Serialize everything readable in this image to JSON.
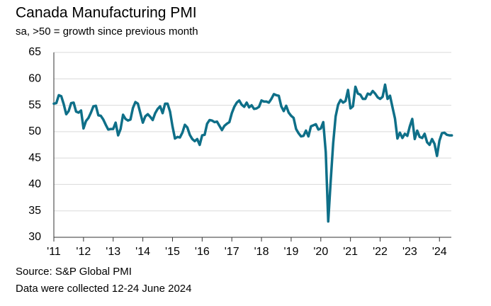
{
  "chart_data": {
    "type": "line",
    "title": "Canada Manufacturing PMI",
    "subtitle": "sa, >50 = growth since previous month",
    "notes": [
      "Source: S&P Global PMI",
      "Data were collected 12-24 June 2024"
    ],
    "x": [
      2011,
      2011.083,
      2011.167,
      2011.25,
      2011.333,
      2011.417,
      2011.5,
      2011.583,
      2011.667,
      2011.75,
      2011.833,
      2011.917,
      2012,
      2012.083,
      2012.167,
      2012.25,
      2012.333,
      2012.417,
      2012.5,
      2012.583,
      2012.667,
      2012.75,
      2012.833,
      2012.917,
      2013,
      2013.083,
      2013.167,
      2013.25,
      2013.333,
      2013.417,
      2013.5,
      2013.583,
      2013.667,
      2013.75,
      2013.833,
      2013.917,
      2014,
      2014.083,
      2014.167,
      2014.25,
      2014.333,
      2014.417,
      2014.5,
      2014.583,
      2014.667,
      2014.75,
      2014.833,
      2014.917,
      2015,
      2015.083,
      2015.167,
      2015.25,
      2015.333,
      2015.417,
      2015.5,
      2015.583,
      2015.667,
      2015.75,
      2015.833,
      2015.917,
      2016,
      2016.083,
      2016.167,
      2016.25,
      2016.333,
      2016.417,
      2016.5,
      2016.583,
      2016.667,
      2016.75,
      2016.833,
      2016.917,
      2017,
      2017.083,
      2017.167,
      2017.25,
      2017.333,
      2017.417,
      2017.5,
      2017.583,
      2017.667,
      2017.75,
      2017.833,
      2017.917,
      2018,
      2018.083,
      2018.167,
      2018.25,
      2018.333,
      2018.417,
      2018.5,
      2018.583,
      2018.667,
      2018.75,
      2018.833,
      2018.917,
      2019,
      2019.083,
      2019.167,
      2019.25,
      2019.333,
      2019.417,
      2019.5,
      2019.583,
      2019.667,
      2019.75,
      2019.833,
      2019.917,
      2020,
      2020.083,
      2020.167,
      2020.25,
      2020.333,
      2020.417,
      2020.5,
      2020.583,
      2020.667,
      2020.75,
      2020.833,
      2020.917,
      2021,
      2021.083,
      2021.167,
      2021.25,
      2021.333,
      2021.417,
      2021.5,
      2021.583,
      2021.667,
      2021.75,
      2021.833,
      2021.917,
      2022,
      2022.083,
      2022.167,
      2022.25,
      2022.333,
      2022.417,
      2022.5,
      2022.583,
      2022.667,
      2022.75,
      2022.833,
      2022.917,
      2023,
      2023.083,
      2023.167,
      2023.25,
      2023.333,
      2023.417,
      2023.5,
      2023.583,
      2023.667,
      2023.75,
      2023.833,
      2023.917,
      2024,
      2024.083,
      2024.167,
      2024.25,
      2024.333,
      2024.417
    ],
    "series": [
      {
        "name": "Canada Manufacturing PMI",
        "color": "#0e6f88",
        "values": [
          55.3,
          55.4,
          56.9,
          56.7,
          55.2,
          53.3,
          53.9,
          55.4,
          55.5,
          53.8,
          53.6,
          54.0,
          50.6,
          52.0,
          52.6,
          53.6,
          54.8,
          54.9,
          53.1,
          53.0,
          52.3,
          51.3,
          50.4,
          50.5,
          50.5,
          51.7,
          49.3,
          50.5,
          53.2,
          52.4,
          52.1,
          52.3,
          54.5,
          55.6,
          55.3,
          53.5,
          51.7,
          52.9,
          53.3,
          52.8,
          52.2,
          53.5,
          54.3,
          54.8,
          53.5,
          55.3,
          55.3,
          53.8,
          51.0,
          48.7,
          49.0,
          48.9,
          49.8,
          51.3,
          50.8,
          49.4,
          48.6,
          48.2,
          48.6,
          47.5,
          49.3,
          49.4,
          51.5,
          52.2,
          52.1,
          51.8,
          51.9,
          51.1,
          50.3,
          51.1,
          51.5,
          51.8,
          53.5,
          54.7,
          55.5,
          55.9,
          55.1,
          54.7,
          55.5,
          54.6,
          55.0,
          54.3,
          54.4,
          54.7,
          55.9,
          55.7,
          55.7,
          55.5,
          56.2,
          57.1,
          56.9,
          56.8,
          54.8,
          53.9,
          54.9,
          53.6,
          53.0,
          52.6,
          50.5,
          49.7,
          49.1,
          49.2,
          50.2,
          49.1,
          51.0,
          51.2,
          51.4,
          50.4,
          50.6,
          51.8,
          46.1,
          33.0,
          40.6,
          47.8,
          52.9,
          55.1,
          56.0,
          55.5,
          55.8,
          57.9,
          54.4,
          54.8,
          58.5,
          57.2,
          57.0,
          56.2,
          56.2,
          57.2,
          57.0,
          57.7,
          57.2,
          56.5,
          56.2,
          56.6,
          58.9,
          56.2,
          56.8,
          54.6,
          52.5,
          48.7,
          49.8,
          48.8,
          49.6,
          49.2,
          51.0,
          52.4,
          48.6,
          50.2,
          49.0,
          48.8,
          49.6,
          48.0,
          47.5,
          48.6,
          47.7,
          45.4,
          48.3,
          49.7,
          49.8,
          49.4,
          49.3,
          49.3
        ]
      }
    ],
    "xlim": [
      2011,
      2024.4
    ],
    "xticks": [
      {
        "value": 2011,
        "label": "'11"
      },
      {
        "value": 2012,
        "label": "'12"
      },
      {
        "value": 2013,
        "label": "'13"
      },
      {
        "value": 2014,
        "label": "'14"
      },
      {
        "value": 2015,
        "label": "'15"
      },
      {
        "value": 2016,
        "label": "'16"
      },
      {
        "value": 2017,
        "label": "'17"
      },
      {
        "value": 2018,
        "label": "'18"
      },
      {
        "value": 2019,
        "label": "'19"
      },
      {
        "value": 2020,
        "label": "'20"
      },
      {
        "value": 2021,
        "label": "'21"
      },
      {
        "value": 2022,
        "label": "'22"
      },
      {
        "value": 2023,
        "label": "'23"
      },
      {
        "value": 2024,
        "label": "'24"
      }
    ],
    "ylim": [
      30,
      65
    ],
    "yticks": [
      30,
      35,
      40,
      45,
      50,
      55,
      60,
      65
    ],
    "grid": true
  }
}
